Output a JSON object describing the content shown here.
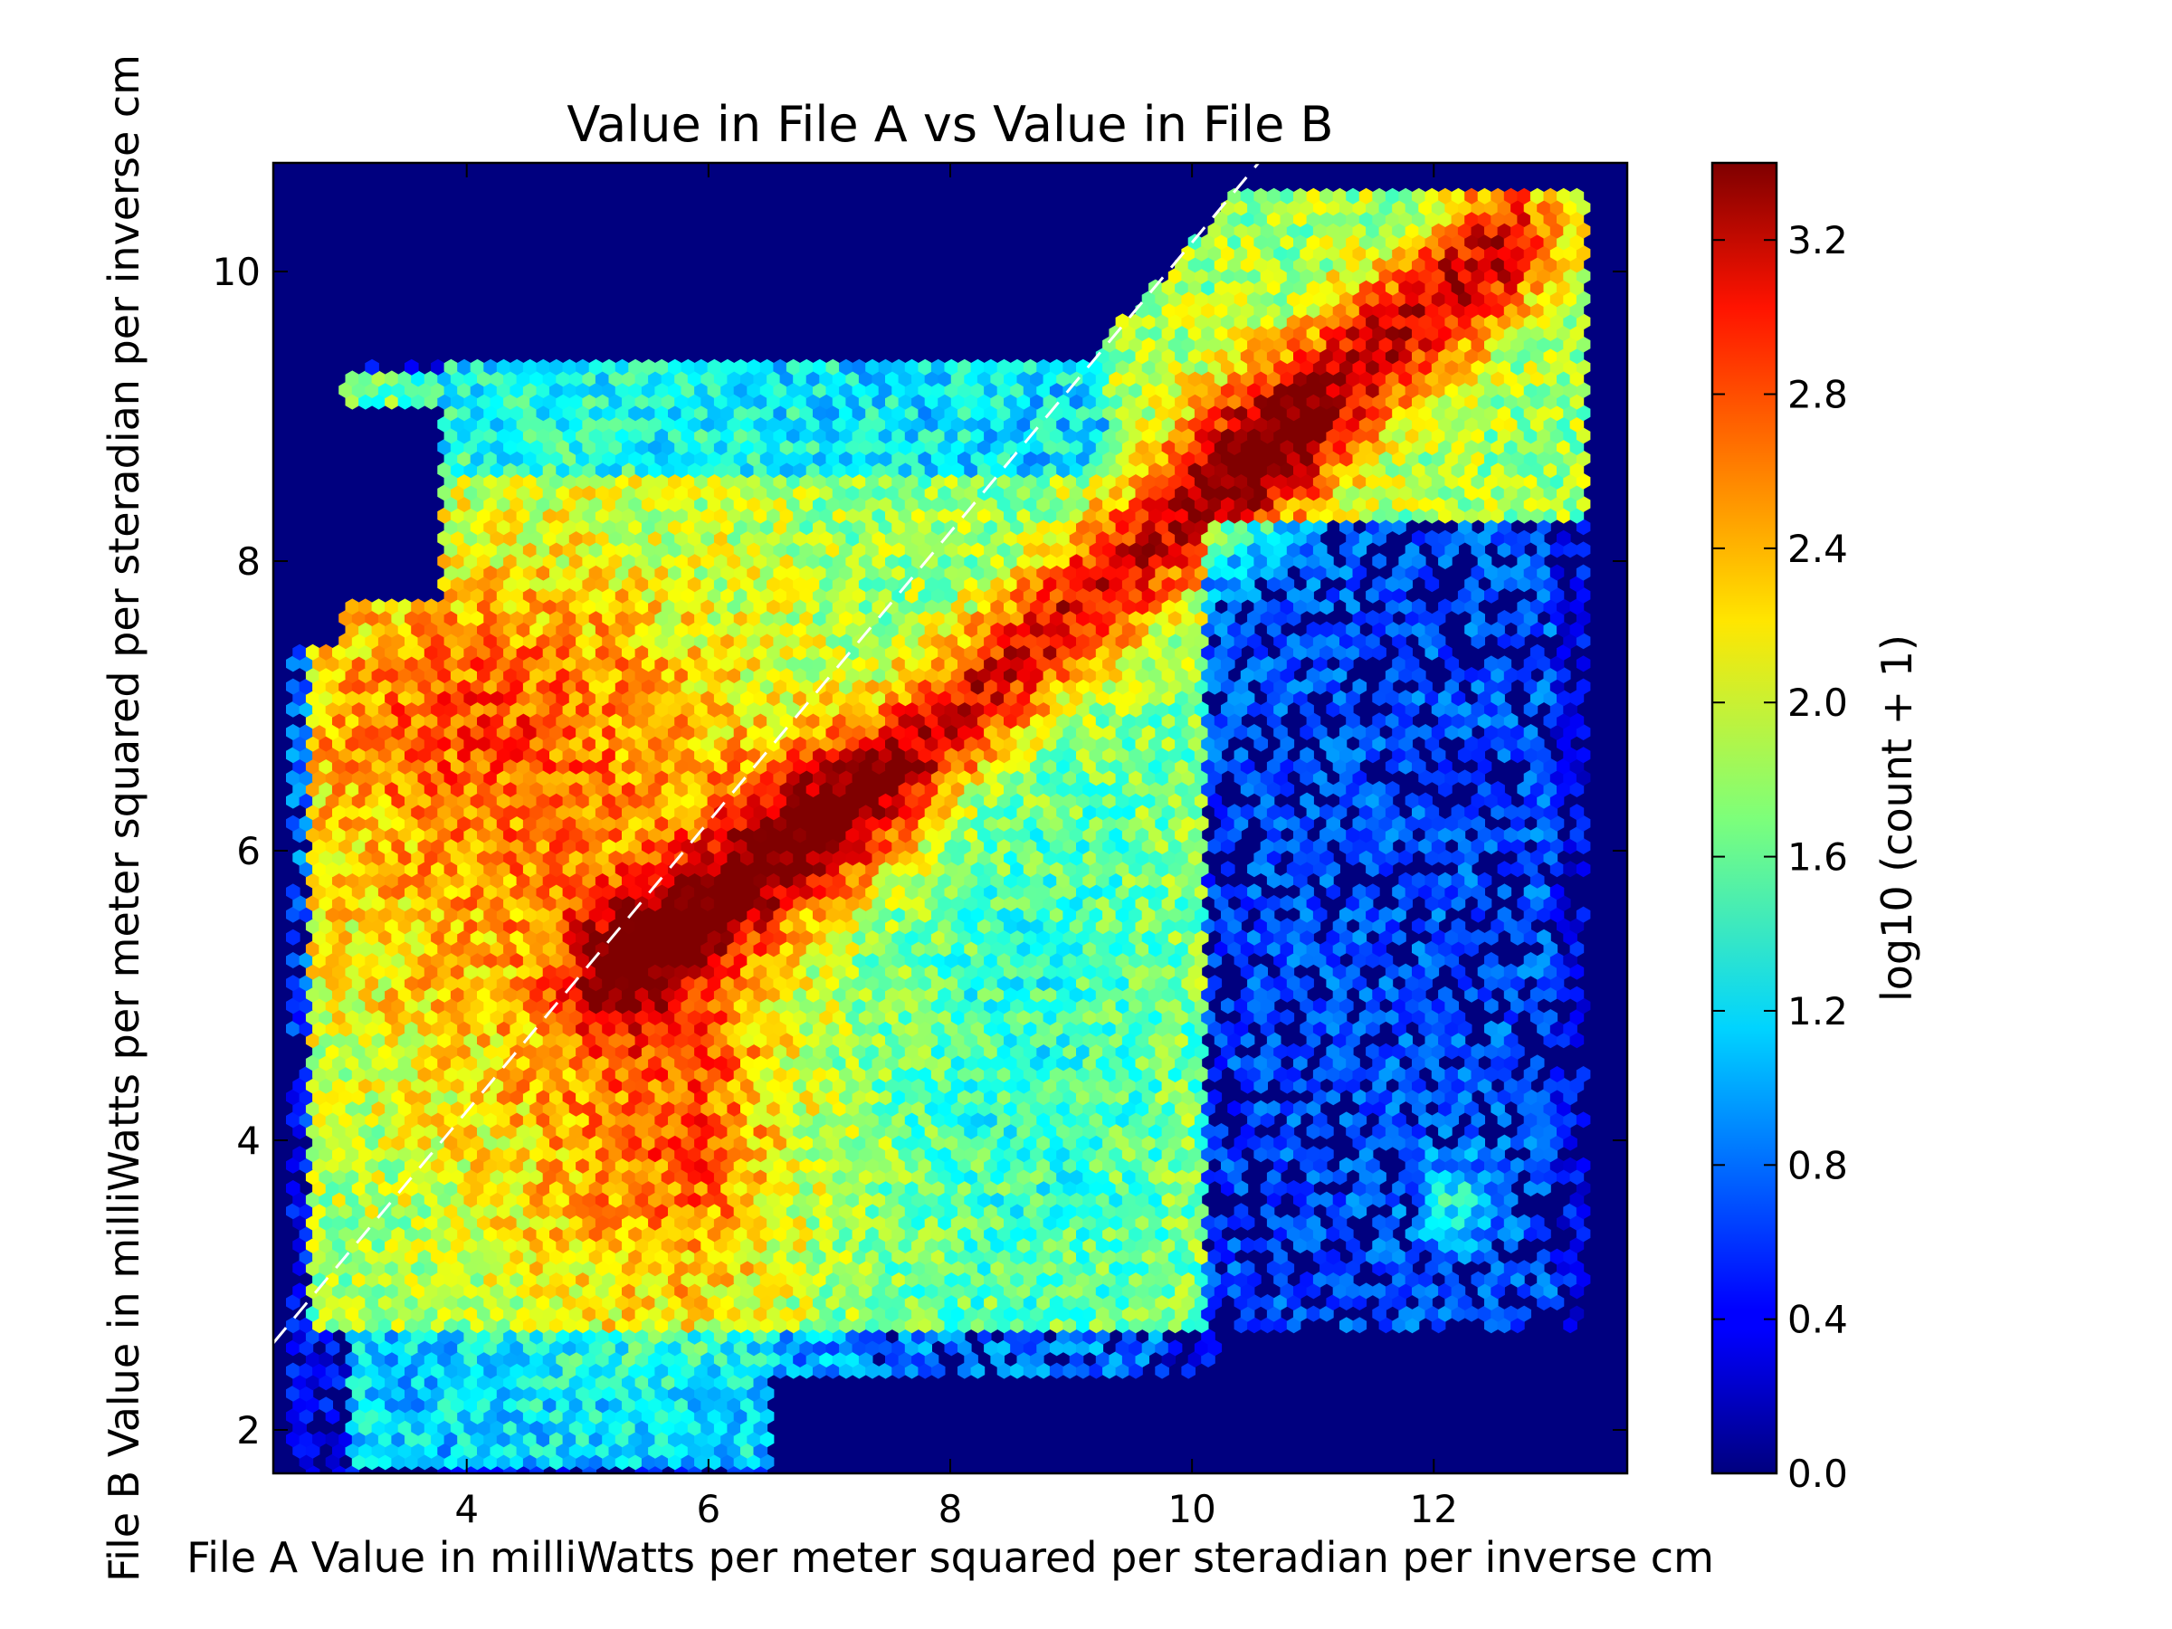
{
  "chart_data": {
    "type": "heatmap",
    "subtype": "hexbin",
    "title": "Value in File A vs Value in File B",
    "xlabel": "File A Value in milliWatts per meter squared per steradian per inverse cm",
    "ylabel": "File B Value in milliWatts per meter squared per steradian per inverse cm",
    "xlim": [
      2.4,
      13.6
    ],
    "ylim": [
      1.7,
      10.75
    ],
    "xticks": [
      4,
      6,
      8,
      10,
      12
    ],
    "xtick_labels": [
      "4",
      "6",
      "8",
      "10",
      "12"
    ],
    "yticks": [
      2,
      4,
      6,
      8,
      10
    ],
    "ytick_labels": [
      "2",
      "4",
      "6",
      "8",
      "10"
    ],
    "grid": false,
    "background_color": "#00007f",
    "colormap": "jet",
    "colorbar": {
      "label": "log10 (count + 1)",
      "range": [
        0.0,
        3.4
      ],
      "ticks": [
        0.0,
        0.4,
        0.8,
        1.2,
        1.6,
        2.0,
        2.4,
        2.8,
        3.2
      ],
      "tick_labels": [
        "0.0",
        "0.4",
        "0.8",
        "1.2",
        "1.6",
        "2.0",
        "2.4",
        "2.8",
        "3.2"
      ]
    },
    "reference_line": {
      "style": "dashed",
      "color": "#ffffff",
      "slope": 1,
      "intercept": 0.2
    },
    "density_description": "highest density along a ridge from about (5.5,5.3) through (7,6.3) to (10.5,8.8) and (12,9.8); broad medium density region x 3-10, y 2.7-8.5; sparse low density region x 10.5-13, y 2.7-8"
  }
}
